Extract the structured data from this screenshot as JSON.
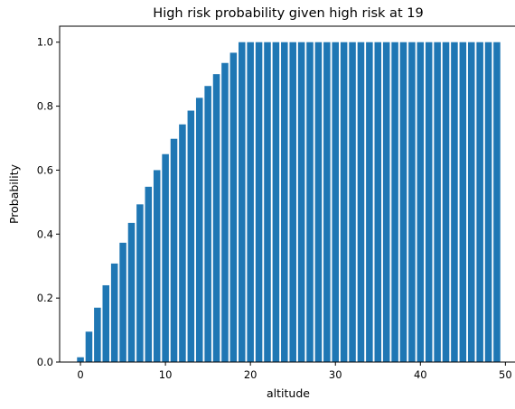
{
  "chart_data": {
    "type": "bar",
    "title": "High risk probability given high risk at 19",
    "xlabel": "altitude",
    "ylabel": "Probability",
    "bar_color": "#1f77b4",
    "grid": false,
    "legend": "none",
    "xlim": [
      -2.45,
      51.45
    ],
    "ylim": [
      0,
      1.05
    ],
    "xticks": [
      0,
      10,
      20,
      30,
      40,
      50
    ],
    "xtick_labels": [
      "0",
      "10",
      "20",
      "30",
      "40",
      "50"
    ],
    "yticks": [
      0.0,
      0.2,
      0.4,
      0.6,
      0.8,
      1.0
    ],
    "ytick_labels": [
      "0.0",
      "0.2",
      "0.4",
      "0.6",
      "0.8",
      "1.0"
    ],
    "x": [
      0,
      1,
      2,
      3,
      4,
      5,
      6,
      7,
      8,
      9,
      10,
      11,
      12,
      13,
      14,
      15,
      16,
      17,
      18,
      19,
      20,
      21,
      22,
      23,
      24,
      25,
      26,
      27,
      28,
      29,
      30,
      31,
      32,
      33,
      34,
      35,
      36,
      37,
      38,
      39,
      40,
      41,
      42,
      43,
      44,
      45,
      46,
      47,
      48,
      49
    ],
    "values": [
      0.015,
      0.095,
      0.17,
      0.24,
      0.308,
      0.373,
      0.435,
      0.493,
      0.548,
      0.6,
      0.65,
      0.698,
      0.743,
      0.786,
      0.826,
      0.863,
      0.9,
      0.935,
      0.967,
      1,
      1,
      1,
      1,
      1,
      1,
      1,
      1,
      1,
      1,
      1,
      1,
      1,
      1,
      1,
      1,
      1,
      1,
      1,
      1,
      1,
      1,
      1,
      1,
      1,
      1,
      1,
      1,
      1,
      1,
      1
    ]
  }
}
